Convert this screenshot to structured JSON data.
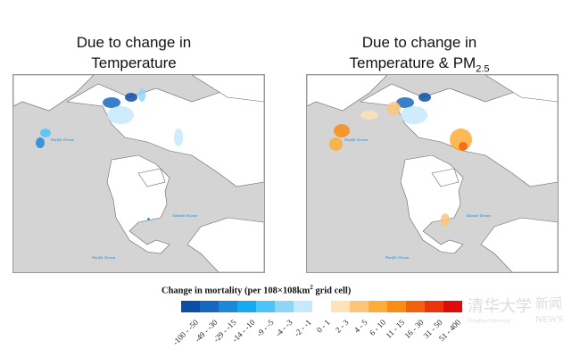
{
  "panels": [
    {
      "title_line1": "Due to change in",
      "title_line2": "Temperature",
      "title_sub": "",
      "ocean_labels": [
        "Pacific Ocean",
        "Atlantic Ocean",
        "Pacific Ocean"
      ]
    },
    {
      "title_line1": "Due to change in",
      "title_line2": "Temperature & PM",
      "title_sub": "2.5",
      "ocean_labels": [
        "Pacific Ocean",
        "Atlantic Ocean",
        "Pacific Ocean"
      ]
    }
  ],
  "legend": {
    "title": "Change in mortality (per 108×108km",
    "title_sup": "2",
    "title_end": " grid cell)",
    "classes": [
      {
        "label": "-100 - -50",
        "color": "#0a4ea6"
      },
      {
        "label": "-49 - -30",
        "color": "#1668bf"
      },
      {
        "label": "-29 - -15",
        "color": "#1d88d8"
      },
      {
        "label": "-14 - -10",
        "color": "#17aaee"
      },
      {
        "label": "-9 - -5",
        "color": "#4cc4f7"
      },
      {
        "label": "-4 - -3",
        "color": "#8ed5f9"
      },
      {
        "label": "-2 - -1",
        "color": "#c6e9fc"
      },
      {
        "label": "0 - 1",
        "color": "#ffffff"
      },
      {
        "label": "2 - 3",
        "color": "#fde3b7"
      },
      {
        "label": "4 - 5",
        "color": "#fcc579"
      },
      {
        "label": "6 - 10",
        "color": "#fbad38"
      },
      {
        "label": "11 - 15",
        "color": "#f98c12"
      },
      {
        "label": "16 - 30",
        "color": "#f2610e"
      },
      {
        "label": "31 - 50",
        "color": "#e9340d"
      },
      {
        "label": "51 - 400",
        "color": "#e10a0a"
      }
    ]
  },
  "watermark": {
    "text1": "清华大学",
    "text2": "新闻",
    "text3": "NEWS",
    "text4": "Tsinghua University"
  }
}
